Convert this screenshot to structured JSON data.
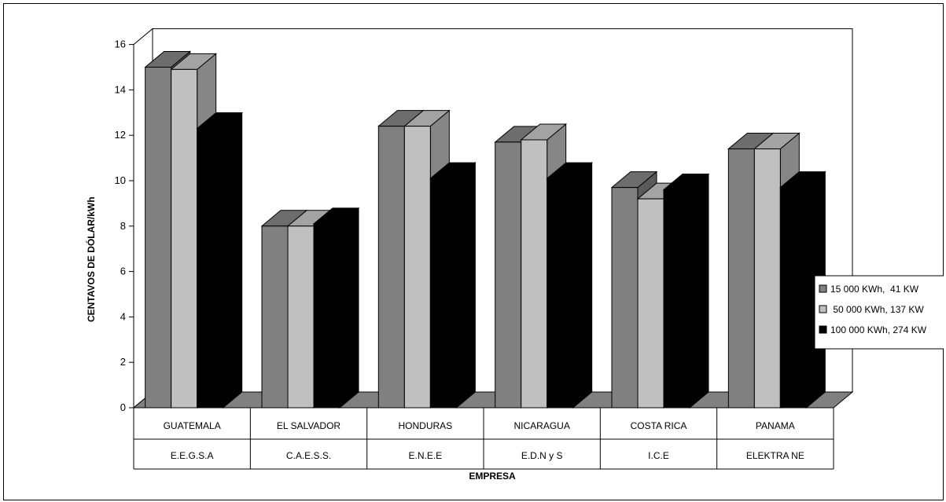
{
  "chart_data": {
    "type": "bar",
    "style": "3d-clustered",
    "categories": [
      "GUATEMALA",
      "EL SALVADOR",
      "HONDURAS",
      "NICARAGUA",
      "COSTA RICA",
      "PANAMA"
    ],
    "sub_categories": [
      "E.E.G.S.A",
      "C.A.E.S.S.",
      "E.N.E.E",
      "E.D.N y S",
      "I.C.E",
      "ELEKTRA NE"
    ],
    "series": [
      {
        "name": "15 000 KWh,  41 KW",
        "color": "#808080",
        "values": [
          15.0,
          8.0,
          12.4,
          11.7,
          9.7,
          11.4
        ]
      },
      {
        "name": " 50 000 KWh, 137 KW",
        "color": "#c0c0c0",
        "values": [
          14.9,
          8.0,
          12.4,
          11.8,
          9.2,
          11.4
        ]
      },
      {
        "name": "100 000 KWh, 274 KW",
        "color": "#000000",
        "values": [
          12.3,
          8.1,
          10.1,
          10.1,
          9.6,
          9.7
        ]
      }
    ],
    "ylabel": "CENTAVOS DE DÓLAR/kWh",
    "xlabel": "EMPRESA",
    "ylim": [
      0,
      16
    ],
    "yticks": [
      "0",
      "2",
      "4",
      "6",
      "8",
      "10",
      "12",
      "14",
      "16"
    ],
    "legend_position": "right",
    "grid": false
  }
}
